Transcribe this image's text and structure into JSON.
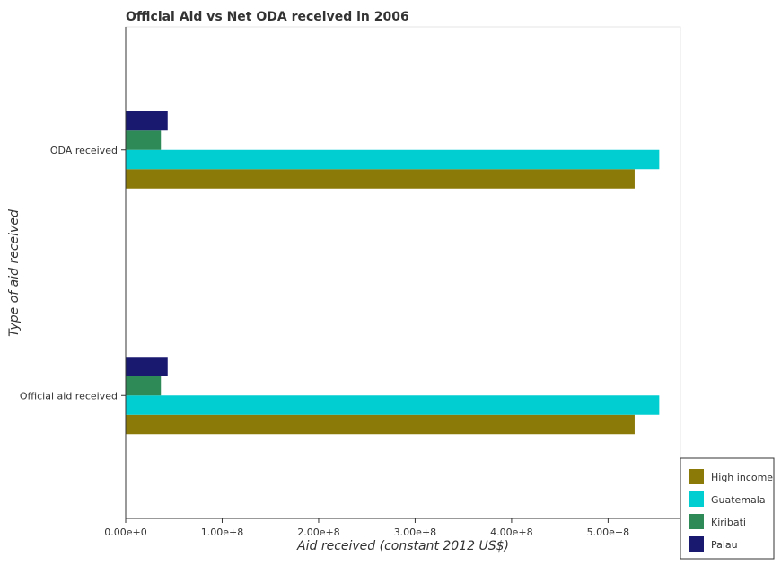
{
  "chart_data": {
    "type": "bar",
    "orientation": "horizontal",
    "title": "Official Aid vs Net ODA received in 2006",
    "xlabel": "Aid received (constant 2012 US$)",
    "ylabel": "Type of aid received",
    "categories": [
      "Official aid received",
      "ODA received"
    ],
    "series": [
      {
        "name": "High income",
        "color": "#8b7a07",
        "values": [
          527500000,
          527500000
        ]
      },
      {
        "name": "Guatemala",
        "color": "#00ced1",
        "values": [
          553000000,
          553000000
        ]
      },
      {
        "name": "Kiribati",
        "color": "#2e8b57",
        "values": [
          36500000,
          36500000
        ]
      },
      {
        "name": "Palau",
        "color": "#191970",
        "values": [
          43500000,
          43500000
        ]
      }
    ],
    "xlim": [
      0,
      575000000
    ],
    "xticks": [
      0,
      100000000,
      200000000,
      300000000,
      400000000,
      500000000
    ],
    "xtick_labels": [
      "0.00e+0",
      "1.00e+8",
      "2.00e+8",
      "3.00e+8",
      "4.00e+8",
      "5.00e+8"
    ],
    "grid": false,
    "legend_position": "bottom-right"
  }
}
